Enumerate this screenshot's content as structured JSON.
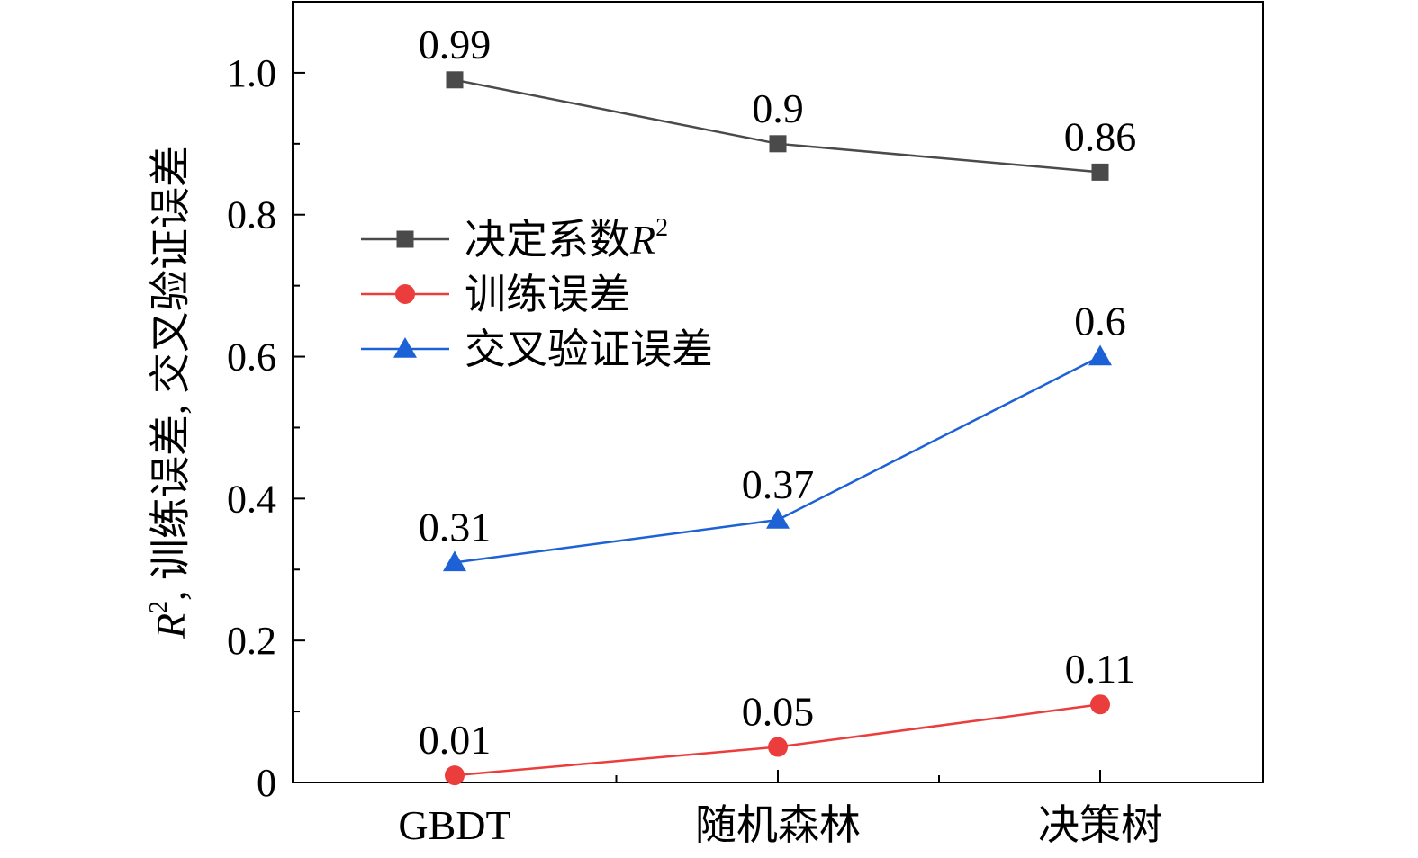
{
  "chart_data": {
    "type": "line",
    "categories": [
      "GBDT",
      "随机森林",
      "决策树"
    ],
    "series": [
      {
        "name": "决定系数R²",
        "legend_text": "决定系数",
        "legend_italic": "R",
        "legend_sup": "2",
        "color": "#4a4a4a",
        "marker": "square",
        "values": [
          0.99,
          0.9,
          0.86
        ],
        "labels": [
          "0.99",
          "0.9",
          "0.86"
        ]
      },
      {
        "name": "训练误差",
        "legend_text": "训练误差",
        "color": "#ec3d3d",
        "marker": "circle",
        "values": [
          0.01,
          0.05,
          0.11
        ],
        "labels": [
          "0.01",
          "0.05",
          "0.11"
        ]
      },
      {
        "name": "交叉验证误差",
        "legend_text": "交叉验证误差",
        "color": "#1c62d6",
        "marker": "triangle",
        "values": [
          0.31,
          0.37,
          0.6
        ],
        "labels": [
          "0.31",
          "0.37",
          "0.6"
        ]
      }
    ],
    "ylabel": {
      "italic": "R",
      "sup": "2",
      "rest": ", 训练误差, 交叉验证误差"
    },
    "ylim": [
      0,
      1.1
    ],
    "yticks": [
      0,
      0.2,
      0.4,
      0.6,
      0.8,
      1.0
    ],
    "ytick_labels": [
      "0",
      "0.2",
      "0.4",
      "0.6",
      "0.8",
      "1.0"
    ],
    "legend_position": "center-left",
    "grid": false
  }
}
